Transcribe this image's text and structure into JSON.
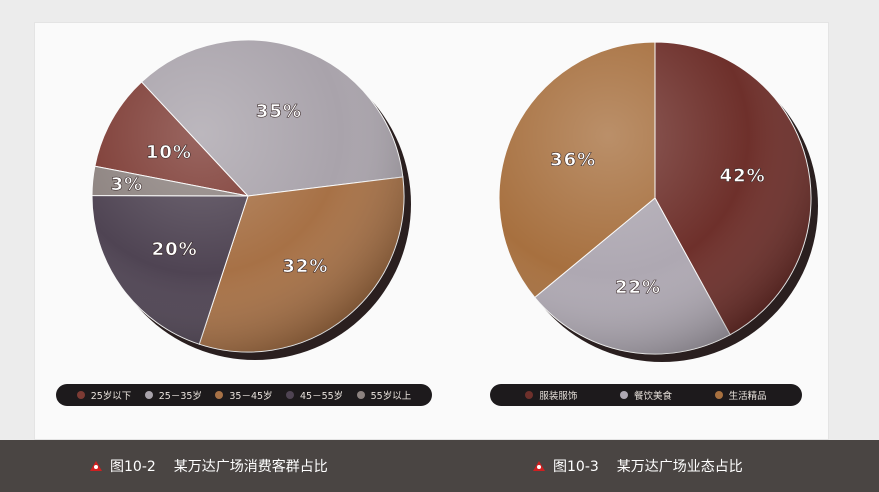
{
  "chart_data": [
    {
      "type": "pie",
      "figure_number": "图10-2",
      "title": "某万达广场消费客群占比",
      "categories": [
        "25岁以下",
        "25－35岁",
        "35－45岁",
        "45－55岁",
        "55岁以上"
      ],
      "values": [
        10,
        35,
        32,
        20,
        3
      ],
      "value_labels": [
        "10%",
        "35%",
        "32%",
        "20%",
        "3%"
      ],
      "colors": [
        "#7d3b34",
        "#a9a3ab",
        "#a77146",
        "#4f4453",
        "#8d8380"
      ],
      "legend_position": "bottom"
    },
    {
      "type": "pie",
      "figure_number": "图10-3",
      "title": "某万达广场业态占比",
      "categories": [
        "服装服饰",
        "餐饮美食",
        "生活精品"
      ],
      "values": [
        42,
        22,
        36
      ],
      "value_labels": [
        "42%",
        "22%",
        "36%"
      ],
      "colors": [
        "#6e302b",
        "#aea8b2",
        "#a7703f"
      ],
      "legend_position": "bottom"
    }
  ]
}
